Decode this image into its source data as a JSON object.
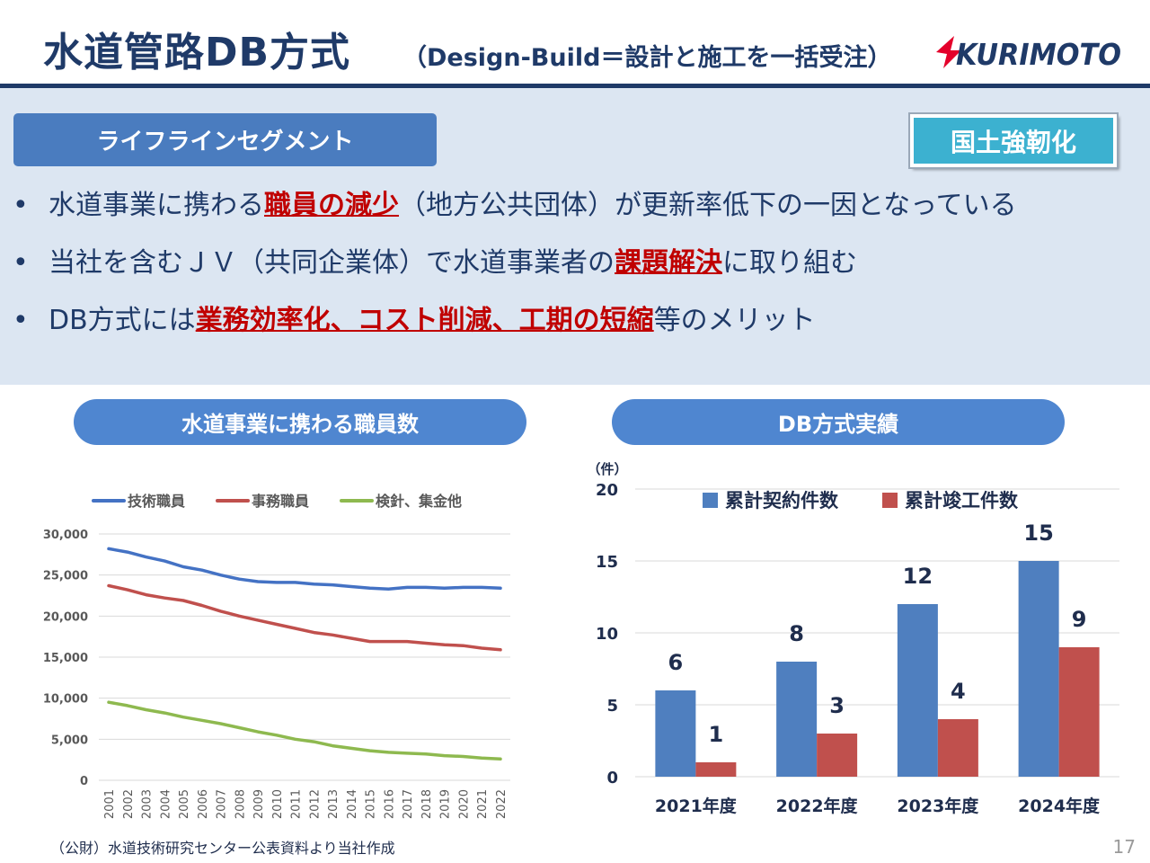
{
  "header": {
    "title": "水道管路DB方式",
    "subtitle": "（Design-Build＝設計と施工を一括受注）",
    "logo_text": "KURIMOTO",
    "brand_color": "#1f3a68",
    "logo_color": "#e4002b"
  },
  "panel": {
    "segment_label": "ライフラインセグメント",
    "badge_label": "国土強靭化",
    "bullet_glyph": "•",
    "bullets": [
      {
        "before": "水道事業に携わる",
        "highlight": "職員の減少",
        "after": "（地方公共団体）が更新率低下の一因となっている"
      },
      {
        "before": "当社を含むＪＶ（共同企業体）で水道事業者の",
        "highlight": "課題解決",
        "after": "に取り組む"
      },
      {
        "before": "DB方式には",
        "highlight": "業務効率化、コスト削減、工期の短縮",
        "after": "等のメリット"
      }
    ],
    "highlight_color": "#c00000"
  },
  "left_section": {
    "title": "水道事業に携わる職員数"
  },
  "right_section": {
    "title": "DB方式実績"
  },
  "chart_data": [
    {
      "type": "line",
      "title": "水道事業に携わる職員数",
      "x": [
        "2001",
        "2002",
        "2003",
        "2004",
        "2005",
        "2006",
        "2007",
        "2008",
        "2009",
        "2010",
        "2011",
        "2012",
        "2013",
        "2014",
        "2015",
        "2016",
        "2017",
        "2018",
        "2019",
        "2020",
        "2021",
        "2022"
      ],
      "ylim": [
        0,
        30000
      ],
      "yticks": [
        0,
        5000,
        10000,
        15000,
        20000,
        25000,
        30000
      ],
      "ytick_labels": [
        "0",
        "5,000",
        "10,000",
        "15,000",
        "20,000",
        "25,000",
        "30,000"
      ],
      "grid": true,
      "legend_position": "top",
      "series": [
        {
          "name": "技術職員",
          "color": "#4472c4",
          "values": [
            28200,
            27800,
            27200,
            26700,
            26000,
            25600,
            25000,
            24500,
            24200,
            24100,
            24100,
            23900,
            23800,
            23600,
            23400,
            23300,
            23500,
            23500,
            23400,
            23500,
            23500,
            23400
          ]
        },
        {
          "name": "事務職員",
          "color": "#c0504d",
          "values": [
            23700,
            23200,
            22600,
            22200,
            21900,
            21300,
            20600,
            20000,
            19500,
            19000,
            18500,
            18000,
            17700,
            17300,
            16900,
            16900,
            16900,
            16700,
            16500,
            16400,
            16100,
            15900
          ]
        },
        {
          "name": "検針、集金他",
          "color": "#8eb94f",
          "values": [
            9500,
            9100,
            8600,
            8200,
            7700,
            7300,
            6900,
            6400,
            5900,
            5500,
            5000,
            4700,
            4200,
            3900,
            3600,
            3400,
            3300,
            3200,
            3000,
            2900,
            2700,
            2600
          ]
        }
      ]
    },
    {
      "type": "bar",
      "title": "DB方式実績",
      "ylabel": "（件）",
      "categories": [
        "2021年度",
        "2022年度",
        "2023年度",
        "2024年度"
      ],
      "ylim": [
        0,
        20
      ],
      "yticks": [
        0,
        5,
        10,
        15,
        20
      ],
      "grid": true,
      "legend_position": "top",
      "series": [
        {
          "name": "累計契約件数",
          "color": "#4f7fbf",
          "values": [
            6,
            8,
            12,
            15
          ]
        },
        {
          "name": "累計竣工件数",
          "color": "#c0504d",
          "values": [
            1,
            3,
            4,
            9
          ]
        }
      ]
    }
  ],
  "footer": {
    "source": "（公財）水道技術研究センター公表資料より当社作成",
    "page": "17"
  }
}
